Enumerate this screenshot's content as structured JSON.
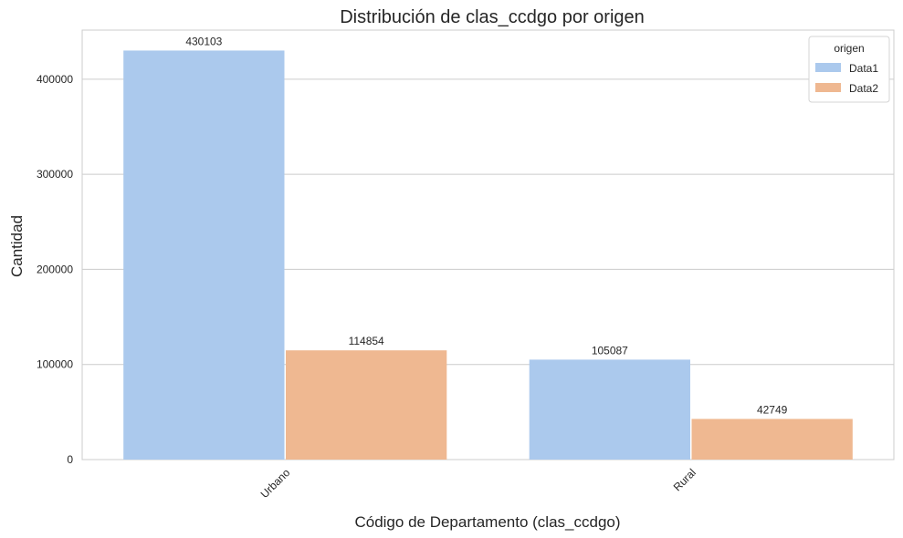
{
  "chart_data": {
    "type": "bar",
    "title": "Distribución de clas_ccdgo por origen",
    "xlabel": "Código de Departamento (clas_ccdgo)",
    "ylabel": "Cantidad",
    "categories": [
      "Urbano",
      "Rural"
    ],
    "series": [
      {
        "name": "Data1",
        "values": [
          430103,
          105087
        ],
        "color": "#abc9ed"
      },
      {
        "name": "Data2",
        "values": [
          114854,
          42749
        ],
        "color": "#efb891"
      }
    ],
    "ylim": [
      0,
      451608
    ],
    "yticks": [
      0,
      100000,
      200000,
      300000,
      400000
    ],
    "ytick_labels": [
      "0",
      "100000",
      "200000",
      "300000",
      "400000"
    ],
    "grid": true,
    "legend": {
      "title": "origen",
      "position": "top-right"
    }
  }
}
